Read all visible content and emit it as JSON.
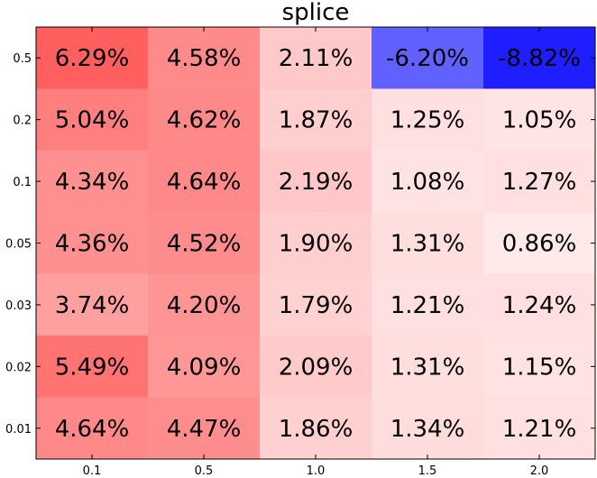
{
  "chart_data": {
    "type": "heatmap",
    "title": "splice",
    "xlabel": "",
    "ylabel": "",
    "x_categories": [
      "0.1",
      "0.5",
      "1.0",
      "1.5",
      "2.0"
    ],
    "y_categories": [
      "0.5",
      "0.2",
      "0.1",
      "0.05",
      "0.03",
      "0.02",
      "0.01"
    ],
    "values": [
      [
        6.29,
        4.58,
        2.11,
        -6.2,
        -8.82
      ],
      [
        5.04,
        4.62,
        1.87,
        1.25,
        1.05
      ],
      [
        4.34,
        4.64,
        2.19,
        1.08,
        1.27
      ],
      [
        4.36,
        4.52,
        1.9,
        1.31,
        0.86
      ],
      [
        3.74,
        4.2,
        1.79,
        1.21,
        1.24
      ],
      [
        5.49,
        4.09,
        2.09,
        1.31,
        1.15
      ],
      [
        4.64,
        4.47,
        1.86,
        1.34,
        1.21
      ]
    ],
    "cell_labels": [
      [
        "6.29%",
        "4.58%",
        "2.11%",
        "-6.20%",
        "-8.82%"
      ],
      [
        "5.04%",
        "4.62%",
        "1.87%",
        "1.25%",
        "1.05%"
      ],
      [
        "4.34%",
        "4.64%",
        "2.19%",
        "1.08%",
        "1.27%"
      ],
      [
        "4.36%",
        "4.52%",
        "1.90%",
        "1.31%",
        "0.86%"
      ],
      [
        "3.74%",
        "4.20%",
        "1.79%",
        "1.21%",
        "1.24%"
      ],
      [
        "5.49%",
        "4.09%",
        "2.09%",
        "1.31%",
        "1.15%"
      ],
      [
        "4.64%",
        "4.47%",
        "1.86%",
        "1.34%",
        "1.21%"
      ]
    ],
    "colormap": {
      "positive": "#ff0000",
      "negative": "#0000ff",
      "zero": "#ffffff"
    },
    "grid": false,
    "legend": "none"
  }
}
